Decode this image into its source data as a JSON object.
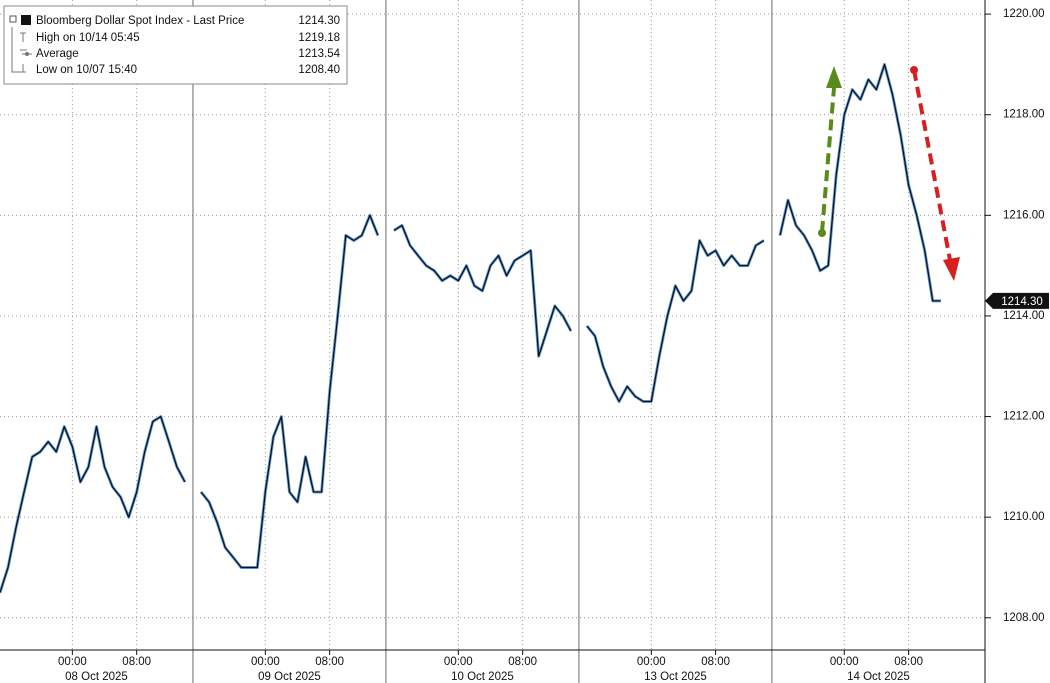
{
  "chart_data": {
    "type": "line",
    "legend": {
      "title": "Bloomberg Dollar Spot Index - Last Price",
      "rows": [
        {
          "name": "High on 10/14 05:45",
          "value": "1219.18"
        },
        {
          "name": "Average",
          "value": "1213.54"
        },
        {
          "name": "Low on 10/07 15:40",
          "value": "1208.40"
        }
      ]
    },
    "last_price": {
      "value": 1214.3,
      "label": "1214.30"
    },
    "xlim": [
      "2025-10-07 15:00",
      "2025-10-14 17:30"
    ],
    "x_excluded": [
      [
        "2025-10-10 16:00",
        "2025-10-12 16:00"
      ]
    ],
    "ylim": [
      1207.36,
      1220.28
    ],
    "yticks": [
      {
        "value": 1208,
        "label": "1208.00"
      },
      {
        "value": 1210,
        "label": "1210.00"
      },
      {
        "value": 1212,
        "label": "1212.00"
      },
      {
        "value": 1214,
        "label": "1214.00"
      },
      {
        "value": 1216,
        "label": "1216.00"
      },
      {
        "value": 1218,
        "label": "1218.00"
      },
      {
        "value": 1220,
        "label": "1220.00"
      }
    ],
    "xticks": [
      {
        "value": "2025-10-08 00:00",
        "label": "00:00"
      },
      {
        "value": "2025-10-08 08:00",
        "label": "08:00"
      },
      {
        "value": "2025-10-09 00:00",
        "label": "00:00"
      },
      {
        "value": "2025-10-09 08:00",
        "label": "08:00"
      },
      {
        "value": "2025-10-10 00:00",
        "label": "00:00"
      },
      {
        "value": "2025-10-10 08:00",
        "label": "08:00"
      },
      {
        "value": "2025-10-13 00:00",
        "label": "00:00"
      },
      {
        "value": "2025-10-13 08:00",
        "label": "08:00"
      },
      {
        "value": "2025-10-14 00:00",
        "label": "00:00"
      },
      {
        "value": "2025-10-14 08:00",
        "label": "08:00"
      }
    ],
    "day_labels": [
      {
        "value": "2025-10-08",
        "label": "08 Oct 2025"
      },
      {
        "value": "2025-10-09",
        "label": "09 Oct 2025"
      },
      {
        "value": "2025-10-10",
        "label": "10 Oct 2025"
      },
      {
        "value": "2025-10-13",
        "label": "13 Oct 2025"
      },
      {
        "value": "2025-10-14",
        "label": "14 Oct 2025"
      }
    ],
    "grid": true,
    "x": [
      "2025-10-07 15:00",
      "2025-10-07 16:00",
      "2025-10-07 17:00",
      "2025-10-07 18:00",
      "2025-10-07 19:00",
      "2025-10-07 20:00",
      "2025-10-07 21:00",
      "2025-10-07 22:00",
      "2025-10-07 23:00",
      "2025-10-08 00:00",
      "2025-10-08 01:00",
      "2025-10-08 02:00",
      "2025-10-08 03:00",
      "2025-10-08 04:00",
      "2025-10-08 05:00",
      "2025-10-08 06:00",
      "2025-10-08 07:00",
      "2025-10-08 08:00",
      "2025-10-08 09:00",
      "2025-10-08 10:00",
      "2025-10-08 11:00",
      "2025-10-08 12:00",
      "2025-10-08 13:00",
      "2025-10-08 14:00",
      "2025-10-08 15:00",
      "2025-10-08 16:00",
      "2025-10-08 17:00",
      "2025-10-08 18:00",
      "2025-10-08 19:00",
      "2025-10-08 20:00",
      "2025-10-08 21:00",
      "2025-10-08 22:00",
      "2025-10-08 23:00",
      "2025-10-09 00:00",
      "2025-10-09 01:00",
      "2025-10-09 02:00",
      "2025-10-09 03:00",
      "2025-10-09 04:00",
      "2025-10-09 05:00",
      "2025-10-09 06:00",
      "2025-10-09 07:00",
      "2025-10-09 08:00",
      "2025-10-09 09:00",
      "2025-10-09 10:00",
      "2025-10-09 11:00",
      "2025-10-09 12:00",
      "2025-10-09 13:00",
      "2025-10-09 14:00",
      "2025-10-09 15:00",
      "2025-10-09 16:00",
      "2025-10-09 17:00",
      "2025-10-09 18:00",
      "2025-10-09 19:00",
      "2025-10-09 20:00",
      "2025-10-09 21:00",
      "2025-10-09 22:00",
      "2025-10-09 23:00",
      "2025-10-10 00:00",
      "2025-10-10 01:00",
      "2025-10-10 02:00",
      "2025-10-10 03:00",
      "2025-10-10 04:00",
      "2025-10-10 05:00",
      "2025-10-10 06:00",
      "2025-10-10 07:00",
      "2025-10-10 08:00",
      "2025-10-10 09:00",
      "2025-10-10 10:00",
      "2025-10-10 11:00",
      "2025-10-10 12:00",
      "2025-10-10 13:00",
      "2025-10-10 14:00",
      "2025-10-10 15:00",
      "2025-10-12 16:00",
      "2025-10-12 17:00",
      "2025-10-12 18:00",
      "2025-10-12 19:00",
      "2025-10-12 20:00",
      "2025-10-12 21:00",
      "2025-10-12 22:00",
      "2025-10-12 23:00",
      "2025-10-13 00:00",
      "2025-10-13 01:00",
      "2025-10-13 02:00",
      "2025-10-13 03:00",
      "2025-10-13 04:00",
      "2025-10-13 05:00",
      "2025-10-13 06:00",
      "2025-10-13 07:00",
      "2025-10-13 08:00",
      "2025-10-13 09:00",
      "2025-10-13 10:00",
      "2025-10-13 11:00",
      "2025-10-13 12:00",
      "2025-10-13 13:00",
      "2025-10-13 14:00",
      "2025-10-13 15:00",
      "2025-10-13 16:00",
      "2025-10-13 17:00",
      "2025-10-13 18:00",
      "2025-10-13 19:00",
      "2025-10-13 20:00",
      "2025-10-13 21:00",
      "2025-10-13 22:00",
      "2025-10-13 23:00",
      "2025-10-14 00:00",
      "2025-10-14 01:00",
      "2025-10-14 02:00",
      "2025-10-14 03:00",
      "2025-10-14 04:00",
      "2025-10-14 05:00",
      "2025-10-14 06:00",
      "2025-10-14 07:00",
      "2025-10-14 08:00",
      "2025-10-14 09:00",
      "2025-10-14 10:00",
      "2025-10-14 11:00",
      "2025-10-14 12:00"
    ],
    "series": [
      {
        "name": "Bloomberg Dollar Spot Index - Last Price",
        "color": "#111111",
        "values": [
          1208.5,
          1209.0,
          1209.8,
          1210.5,
          1211.2,
          1211.3,
          1211.5,
          1211.3,
          1211.8,
          1211.4,
          1210.7,
          1211.0,
          1211.8,
          1211.0,
          1210.6,
          1210.4,
          1210.0,
          1210.5,
          1211.3,
          1211.9,
          1212.0,
          1211.5,
          1211.0,
          1210.7,
          null,
          1210.5,
          1210.3,
          1209.9,
          1209.4,
          1209.2,
          1209.0,
          1209.0,
          1209.0,
          1210.5,
          1211.6,
          1212.0,
          1210.5,
          1210.3,
          1211.2,
          1210.5,
          1210.5,
          1212.5,
          1214.0,
          1215.6,
          1215.5,
          1215.6,
          1216.0,
          1215.6,
          null,
          1215.7,
          1215.8,
          1215.4,
          1215.2,
          1215.0,
          1214.9,
          1214.7,
          1214.8,
          1214.7,
          1215.0,
          1214.6,
          1214.5,
          1215.0,
          1215.2,
          1214.8,
          1215.1,
          1215.2,
          1215.3,
          1213.2,
          1213.7,
          1214.2,
          1214.0,
          1213.7,
          null,
          1213.8,
          1213.6,
          1213.0,
          1212.6,
          1212.3,
          1212.6,
          1212.4,
          1212.3,
          1212.3,
          1213.2,
          1214.0,
          1214.6,
          1214.3,
          1214.5,
          1215.5,
          1215.2,
          1215.3,
          1215.0,
          1215.2,
          1215.0,
          1215.0,
          1215.4,
          1215.5,
          null,
          1215.6,
          1216.3,
          1215.8,
          1215.6,
          1215.3,
          1214.9,
          1215.0,
          1216.8,
          1218.0,
          1218.5,
          1218.3,
          1218.7,
          1218.5,
          1219.0,
          1218.4,
          1217.6,
          1216.6,
          1216.0,
          1215.3,
          1214.3,
          1214.3
        ]
      }
    ]
  }
}
